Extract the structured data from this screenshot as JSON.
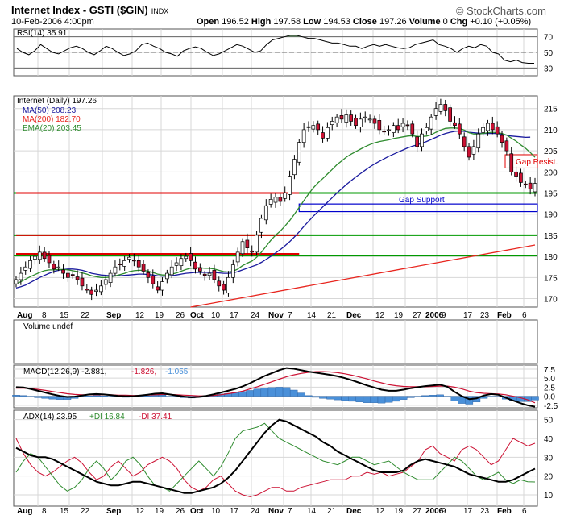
{
  "header": {
    "title": "Internet Index - GSTI ($GIN)",
    "exchange": "INDX",
    "date": "10-Feb-2006 4:00pm",
    "open_label": "Open",
    "open": "196.52",
    "high_label": "High",
    "high": "197.58",
    "low_label": "Low",
    "low": "194.53",
    "close_label": "Close",
    "close": "197.26",
    "volume_label": "Volume",
    "volume": "0",
    "chg_label": "Chg",
    "chg": "+0.10 (+0.05%)",
    "brand": "© StockCharts.com"
  },
  "colors": {
    "up_candle": "#ffffff",
    "down_candle": "#cc1133",
    "ma50": "#1a1a9e",
    "ma200": "#e8251e",
    "ema20": "#2e8b2e",
    "support_line": "#009900",
    "resist_line": "#e00000",
    "gap_support": "#0000cc",
    "histogram": "#4a90d9",
    "grid": "#d7d7d7",
    "rsi_fill": "#4c7a4c"
  },
  "chart_data": [
    {
      "type": "line",
      "name": "rsi_panel",
      "legend": "RSI(14) 35.91",
      "ylim": [
        20,
        80
      ],
      "y_ticks": [
        "70",
        "50",
        "30"
      ],
      "ref_levels": [
        70,
        50,
        30
      ],
      "values": [
        55,
        50,
        47,
        52,
        60,
        55,
        50,
        48,
        52,
        56,
        58,
        55,
        50,
        47,
        52,
        58,
        55,
        50,
        46,
        48,
        52,
        60,
        62,
        58,
        55,
        50,
        48,
        45,
        52,
        55,
        57,
        55,
        50,
        46,
        48,
        52,
        56,
        60,
        58,
        54,
        50,
        52,
        60,
        66,
        68,
        70,
        72,
        72,
        70,
        68,
        68,
        66,
        64,
        62,
        62,
        60,
        58,
        58,
        55,
        58,
        60,
        58,
        60,
        58,
        56,
        55,
        56,
        60,
        62,
        64,
        66,
        60,
        58,
        55,
        50,
        55,
        58,
        56,
        60,
        58,
        50,
        48,
        40,
        38,
        40,
        37,
        36,
        36
      ]
    },
    {
      "type": "candlestick",
      "name": "price_panel",
      "legend_price": "Internet (Daily) 197.26",
      "legend_ma50": "MA(50) 208.23",
      "legend_ma200": "MA(200) 182.70",
      "legend_ema20": "EMA(20) 203.45",
      "ylim": [
        168,
        218
      ],
      "y_ticks": [
        "215",
        "210",
        "205",
        "200",
        "195",
        "190",
        "185",
        "180",
        "175",
        "170"
      ],
      "x_labels": [
        "Aug",
        "8",
        "15",
        "22",
        "Sep",
        "12",
        "19",
        "26",
        "Oct",
        "10",
        "17",
        "24",
        "Nov",
        "7",
        "14",
        "21",
        "Dec",
        "12",
        "19",
        "27",
        "2006",
        "9",
        "17",
        "23",
        "Feb",
        "6"
      ],
      "closes": [
        174.5,
        176,
        177.5,
        179,
        180,
        181,
        179.5,
        178.5,
        177,
        177.5,
        176,
        175,
        175.5,
        174.5,
        173,
        172,
        171,
        172,
        173,
        174.5,
        176,
        177.5,
        178,
        179,
        179.8,
        179,
        177.5,
        176.5,
        175,
        173.5,
        172,
        174,
        176,
        177.5,
        178.5,
        179.5,
        180,
        179,
        177,
        176.5,
        175.5,
        176,
        174.5,
        173,
        172,
        175,
        178,
        181,
        183.5,
        182,
        181,
        185,
        189,
        192,
        193.5,
        194,
        193,
        195,
        199,
        203,
        207,
        210,
        210.5,
        211,
        210,
        208,
        210.5,
        212,
        213,
        212.5,
        213.5,
        212,
        211,
        212.5,
        213,
        212.5,
        211.5,
        210,
        209.5,
        210,
        211,
        210,
        211.5,
        211,
        209,
        206,
        209,
        210.5,
        213,
        215,
        216,
        214.5,
        212,
        211,
        209,
        206,
        203.5,
        206,
        209,
        210.5,
        211.5,
        210,
        209,
        207,
        205,
        200,
        199,
        197.5,
        197,
        196,
        197.26
      ],
      "ma50": [
        172.5,
        172.8,
        173.2,
        173.8,
        174.4,
        175,
        175.5,
        176,
        176.4,
        176.7,
        176.9,
        177,
        177,
        176.9,
        176.7,
        176.4,
        176,
        175.8,
        175.6,
        175.5,
        175.4,
        175.4,
        175.4,
        175.5,
        175.6,
        175.7,
        175.8,
        175.8,
        175.7,
        175.6,
        175.4,
        175.3,
        175.3,
        175.4,
        175.6,
        175.8,
        176,
        176.1,
        176.2,
        176.2,
        176.2,
        176.2,
        176.2,
        176.1,
        176,
        176,
        176.1,
        176.4,
        176.8,
        177.2,
        177.6,
        178,
        178.6,
        179.3,
        180,
        180.8,
        181.6,
        182.5,
        183.5,
        184.6,
        185.8,
        187.1,
        188.3,
        189.5,
        190.6,
        191.7,
        192.8,
        193.9,
        195,
        196,
        197,
        197.9,
        198.8,
        199.6,
        200.4,
        201.2,
        201.9,
        202.5,
        203.1,
        203.7,
        204.2,
        204.7,
        205.2,
        205.7,
        206.1,
        206.4,
        206.8,
        207.2,
        207.7,
        208.2,
        208.7,
        209.1,
        209.4,
        209.6,
        209.7,
        209.6,
        209.4,
        209.3,
        209.2,
        209.1,
        209.1,
        209.1,
        209.1,
        208.9,
        208.7,
        208.5,
        208.4,
        208.3,
        208.2,
        208.23
      ],
      "ema20": [
        173.5,
        174,
        174.6,
        175.2,
        175.7,
        176.2,
        176.6,
        176.8,
        176.8,
        176.9,
        176.9,
        176.8,
        176.6,
        176.4,
        176.1,
        175.8,
        175.4,
        175.2,
        175,
        175,
        175.1,
        175.4,
        175.7,
        176,
        176.4,
        176.6,
        176.7,
        176.7,
        176.5,
        176.2,
        175.8,
        175.6,
        175.6,
        175.8,
        176.1,
        176.5,
        176.9,
        177.2,
        177.3,
        177.3,
        177.2,
        177.2,
        177,
        176.7,
        176.4,
        176.3,
        176.5,
        177,
        177.8,
        178.4,
        178.9,
        179.8,
        181,
        182.4,
        183.8,
        185,
        186,
        187.2,
        188.5,
        190,
        191.6,
        193.2,
        194.8,
        196.2,
        197.4,
        198.4,
        199.5,
        200.6,
        201.7,
        202.6,
        203.5,
        204.2,
        204.8,
        205.4,
        206,
        206.5,
        206.9,
        207.2,
        207.4,
        207.6,
        207.9,
        208.1,
        208.3,
        208.5,
        208.6,
        208.4,
        208.4,
        208.5,
        208.8,
        209.4,
        209.9,
        210.3,
        210.4,
        210.4,
        210.3,
        209.9,
        209.3,
        209,
        209,
        209.1,
        209.3,
        209.4,
        209.3,
        209.1,
        208.7,
        208,
        207.3,
        206.4,
        205.6,
        204.6,
        203.45
      ],
      "ma200": [
        [
          37,
          168
        ],
        [
          110,
          182.7
        ]
      ],
      "hlines": [
        {
          "y": 195,
          "color": "green"
        },
        {
          "y": 185,
          "color": "green"
        },
        {
          "y": 180.2,
          "color": "green"
        },
        {
          "y": 195,
          "color": "red",
          "from_index": 0,
          "to_index": 60
        },
        {
          "y": 185,
          "color": "red",
          "from_index": 0,
          "to_index": 60
        },
        {
          "y": 180.6,
          "color": "red",
          "from_index": 0,
          "to_index": 60
        }
      ],
      "annotations": [
        {
          "label": "Gap Support",
          "price_top": 192.4,
          "price_bottom": 190.6
        },
        {
          "label": "Gap Resist.",
          "price_top": 203.5,
          "price_bottom": 201.5
        }
      ]
    },
    {
      "type": "bar",
      "name": "volume_panel",
      "legend": "Volume undef",
      "values": []
    },
    {
      "type": "line",
      "name": "macd_panel",
      "legend_main": "MACD(12,26,9) -2.881,",
      "legend_signal": "-1.826,",
      "legend_hist": "-1.055",
      "ylim": [
        -3.2,
        8.6
      ],
      "y_ticks": [
        "7.5",
        "5.0",
        "2.5",
        "0.0",
        "-2.5"
      ],
      "macd": [
        2.5,
        2.4,
        2.0,
        1.5,
        1.0,
        0.5,
        0.1,
        -0.2,
        -0.1,
        0.2,
        0.5,
        0.6,
        0.5,
        0.3,
        0.1,
        0.0,
        0.0,
        0.2,
        0.4,
        0.7,
        0.8,
        0.5,
        0.2,
        -0.1,
        -0.3,
        -0.2,
        0.1,
        0.5,
        1.0,
        1.5,
        2.0,
        2.7,
        3.6,
        4.6,
        5.6,
        6.4,
        7.2,
        7.8,
        7.6,
        7.2,
        6.8,
        6.5,
        6.2,
        5.9,
        5.5,
        5.0,
        4.4,
        3.7,
        3.0,
        2.4,
        1.8,
        1.5,
        1.5,
        1.8,
        2.2,
        2.5,
        2.8,
        3.0,
        3.2,
        2.6,
        1.2,
        0.0,
        -0.8,
        -0.6,
        0.2,
        0.6,
        0.4,
        -0.4,
        -1.2,
        -1.9,
        -2.5,
        -2.881
      ],
      "signal": [
        2.2,
        2.2,
        2.1,
        1.9,
        1.6,
        1.3,
        1.0,
        0.7,
        0.5,
        0.4,
        0.4,
        0.4,
        0.4,
        0.4,
        0.3,
        0.3,
        0.2,
        0.2,
        0.3,
        0.4,
        0.5,
        0.5,
        0.4,
        0.3,
        0.2,
        0.1,
        0.1,
        0.2,
        0.4,
        0.7,
        1.0,
        1.4,
        2.0,
        2.6,
        3.3,
        4.0,
        4.7,
        5.4,
        5.9,
        6.3,
        6.6,
        6.8,
        6.8,
        6.7,
        6.5,
        6.2,
        5.8,
        5.3,
        4.8,
        4.2,
        3.7,
        3.2,
        2.9,
        2.7,
        2.6,
        2.6,
        2.6,
        2.7,
        2.8,
        2.8,
        2.5,
        2.0,
        1.4,
        1.0,
        0.8,
        0.7,
        0.6,
        0.4,
        0.0,
        -0.4,
        -1.0,
        -1.826
      ]
    },
    {
      "type": "line",
      "name": "adx_panel",
      "legend_adx": "ADX(14) 23.95",
      "legend_pdi": "+DI 16.84",
      "legend_mdi": "-DI 37.41",
      "ylim": [
        4,
        55
      ],
      "y_ticks": [
        "50",
        "40",
        "30",
        "20",
        "10"
      ],
      "adx": [
        35,
        33,
        31,
        30,
        30,
        29,
        27,
        25,
        23,
        21,
        19,
        17,
        16,
        15,
        15,
        16,
        17,
        17,
        16,
        15,
        14,
        13,
        12,
        11,
        11,
        12,
        13,
        14,
        16,
        19,
        23,
        28,
        33,
        38,
        43,
        47,
        50,
        49,
        47,
        45,
        43,
        41,
        38,
        36,
        33,
        31,
        29,
        27,
        25,
        23,
        22,
        22,
        22,
        23,
        26,
        28,
        29,
        28,
        27,
        26,
        25,
        23,
        21,
        20,
        19,
        18,
        17,
        17,
        18,
        20,
        22,
        23.95
      ],
      "pdi": [
        22,
        28,
        32,
        30,
        25,
        20,
        15,
        12,
        14,
        18,
        24,
        28,
        24,
        18,
        22,
        28,
        30,
        26,
        20,
        15,
        14,
        12,
        16,
        20,
        24,
        28,
        24,
        20,
        25,
        32,
        40,
        44,
        45,
        46,
        48,
        44,
        40,
        38,
        36,
        34,
        32,
        30,
        28,
        27,
        26,
        28,
        30,
        30,
        28,
        26,
        27,
        28,
        25,
        22,
        20,
        18,
        18,
        18,
        22,
        26,
        30,
        28,
        24,
        20,
        18,
        20,
        22,
        18,
        16,
        18,
        17,
        16.84
      ],
      "mdi": [
        40,
        32,
        26,
        22,
        20,
        22,
        25,
        28,
        30,
        27,
        22,
        18,
        20,
        25,
        28,
        24,
        20,
        22,
        26,
        28,
        30,
        28,
        24,
        18,
        14,
        12,
        14,
        18,
        20,
        16,
        12,
        10,
        9,
        10,
        12,
        14,
        14,
        12,
        12,
        14,
        15,
        16,
        17,
        18,
        18,
        18,
        20,
        20,
        22,
        21,
        22,
        20,
        21,
        22,
        25,
        28,
        34,
        36,
        32,
        30,
        28,
        34,
        36,
        34,
        30,
        26,
        28,
        34,
        40,
        38,
        36,
        37.41
      ]
    }
  ]
}
